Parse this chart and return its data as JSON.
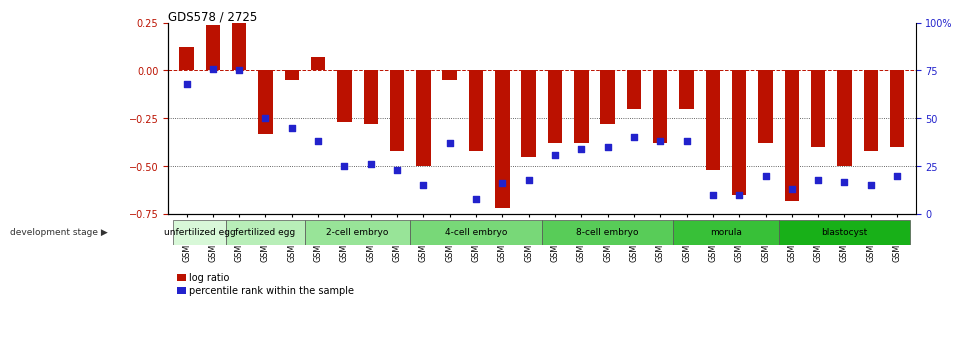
{
  "title": "GDS578 / 2725",
  "samples": [
    "GSM14658",
    "GSM14660",
    "GSM14661",
    "GSM14662",
    "GSM14663",
    "GSM14664",
    "GSM14665",
    "GSM14666",
    "GSM14667",
    "GSM14668",
    "GSM14677",
    "GSM14678",
    "GSM14679",
    "GSM14680",
    "GSM14681",
    "GSM14682",
    "GSM14683",
    "GSM14684",
    "GSM14685",
    "GSM14686",
    "GSM14687",
    "GSM14688",
    "GSM14689",
    "GSM14690",
    "GSM14691",
    "GSM14692",
    "GSM14693",
    "GSM14694"
  ],
  "log_ratio": [
    0.12,
    0.24,
    0.26,
    -0.33,
    -0.05,
    0.07,
    -0.27,
    -0.28,
    -0.42,
    -0.5,
    -0.05,
    -0.42,
    -0.72,
    -0.45,
    -0.38,
    -0.38,
    -0.28,
    -0.2,
    -0.38,
    -0.2,
    -0.52,
    -0.65,
    -0.38,
    -0.68,
    -0.4,
    -0.5,
    -0.42,
    -0.4
  ],
  "percentile": [
    68,
    76,
    75,
    50,
    45,
    38,
    25,
    26,
    23,
    15,
    37,
    8,
    16,
    18,
    31,
    34,
    35,
    40,
    38,
    38,
    10,
    10,
    20,
    13,
    18,
    17,
    15,
    20
  ],
  "groups": [
    {
      "label": "unfertilized egg",
      "start": 0,
      "end": 2,
      "color": "#d8f8d8"
    },
    {
      "label": "fertilized egg",
      "start": 2,
      "end": 5,
      "color": "#c0f0c0"
    },
    {
      "label": "2-cell embryo",
      "start": 5,
      "end": 9,
      "color": "#a8e8a8"
    },
    {
      "label": "4-cell embryo",
      "start": 9,
      "end": 14,
      "color": "#80dc80"
    },
    {
      "label": "8-cell embryo",
      "start": 14,
      "end": 19,
      "color": "#58cc58"
    },
    {
      "label": "morula",
      "start": 19,
      "end": 23,
      "color": "#38c038"
    },
    {
      "label": "blastocyst",
      "start": 23,
      "end": 28,
      "color": "#20b820"
    }
  ],
  "bar_color": "#bb1100",
  "dot_color": "#2222cc",
  "ylim_left": [
    -0.75,
    0.25
  ],
  "ylim_right": [
    0,
    100
  ],
  "yticks_left": [
    0.25,
    0.0,
    -0.25,
    -0.5,
    -0.75
  ],
  "yticks_right": [
    100,
    75,
    50,
    25,
    0
  ],
  "dotted_lines": [
    -0.25,
    -0.5
  ]
}
